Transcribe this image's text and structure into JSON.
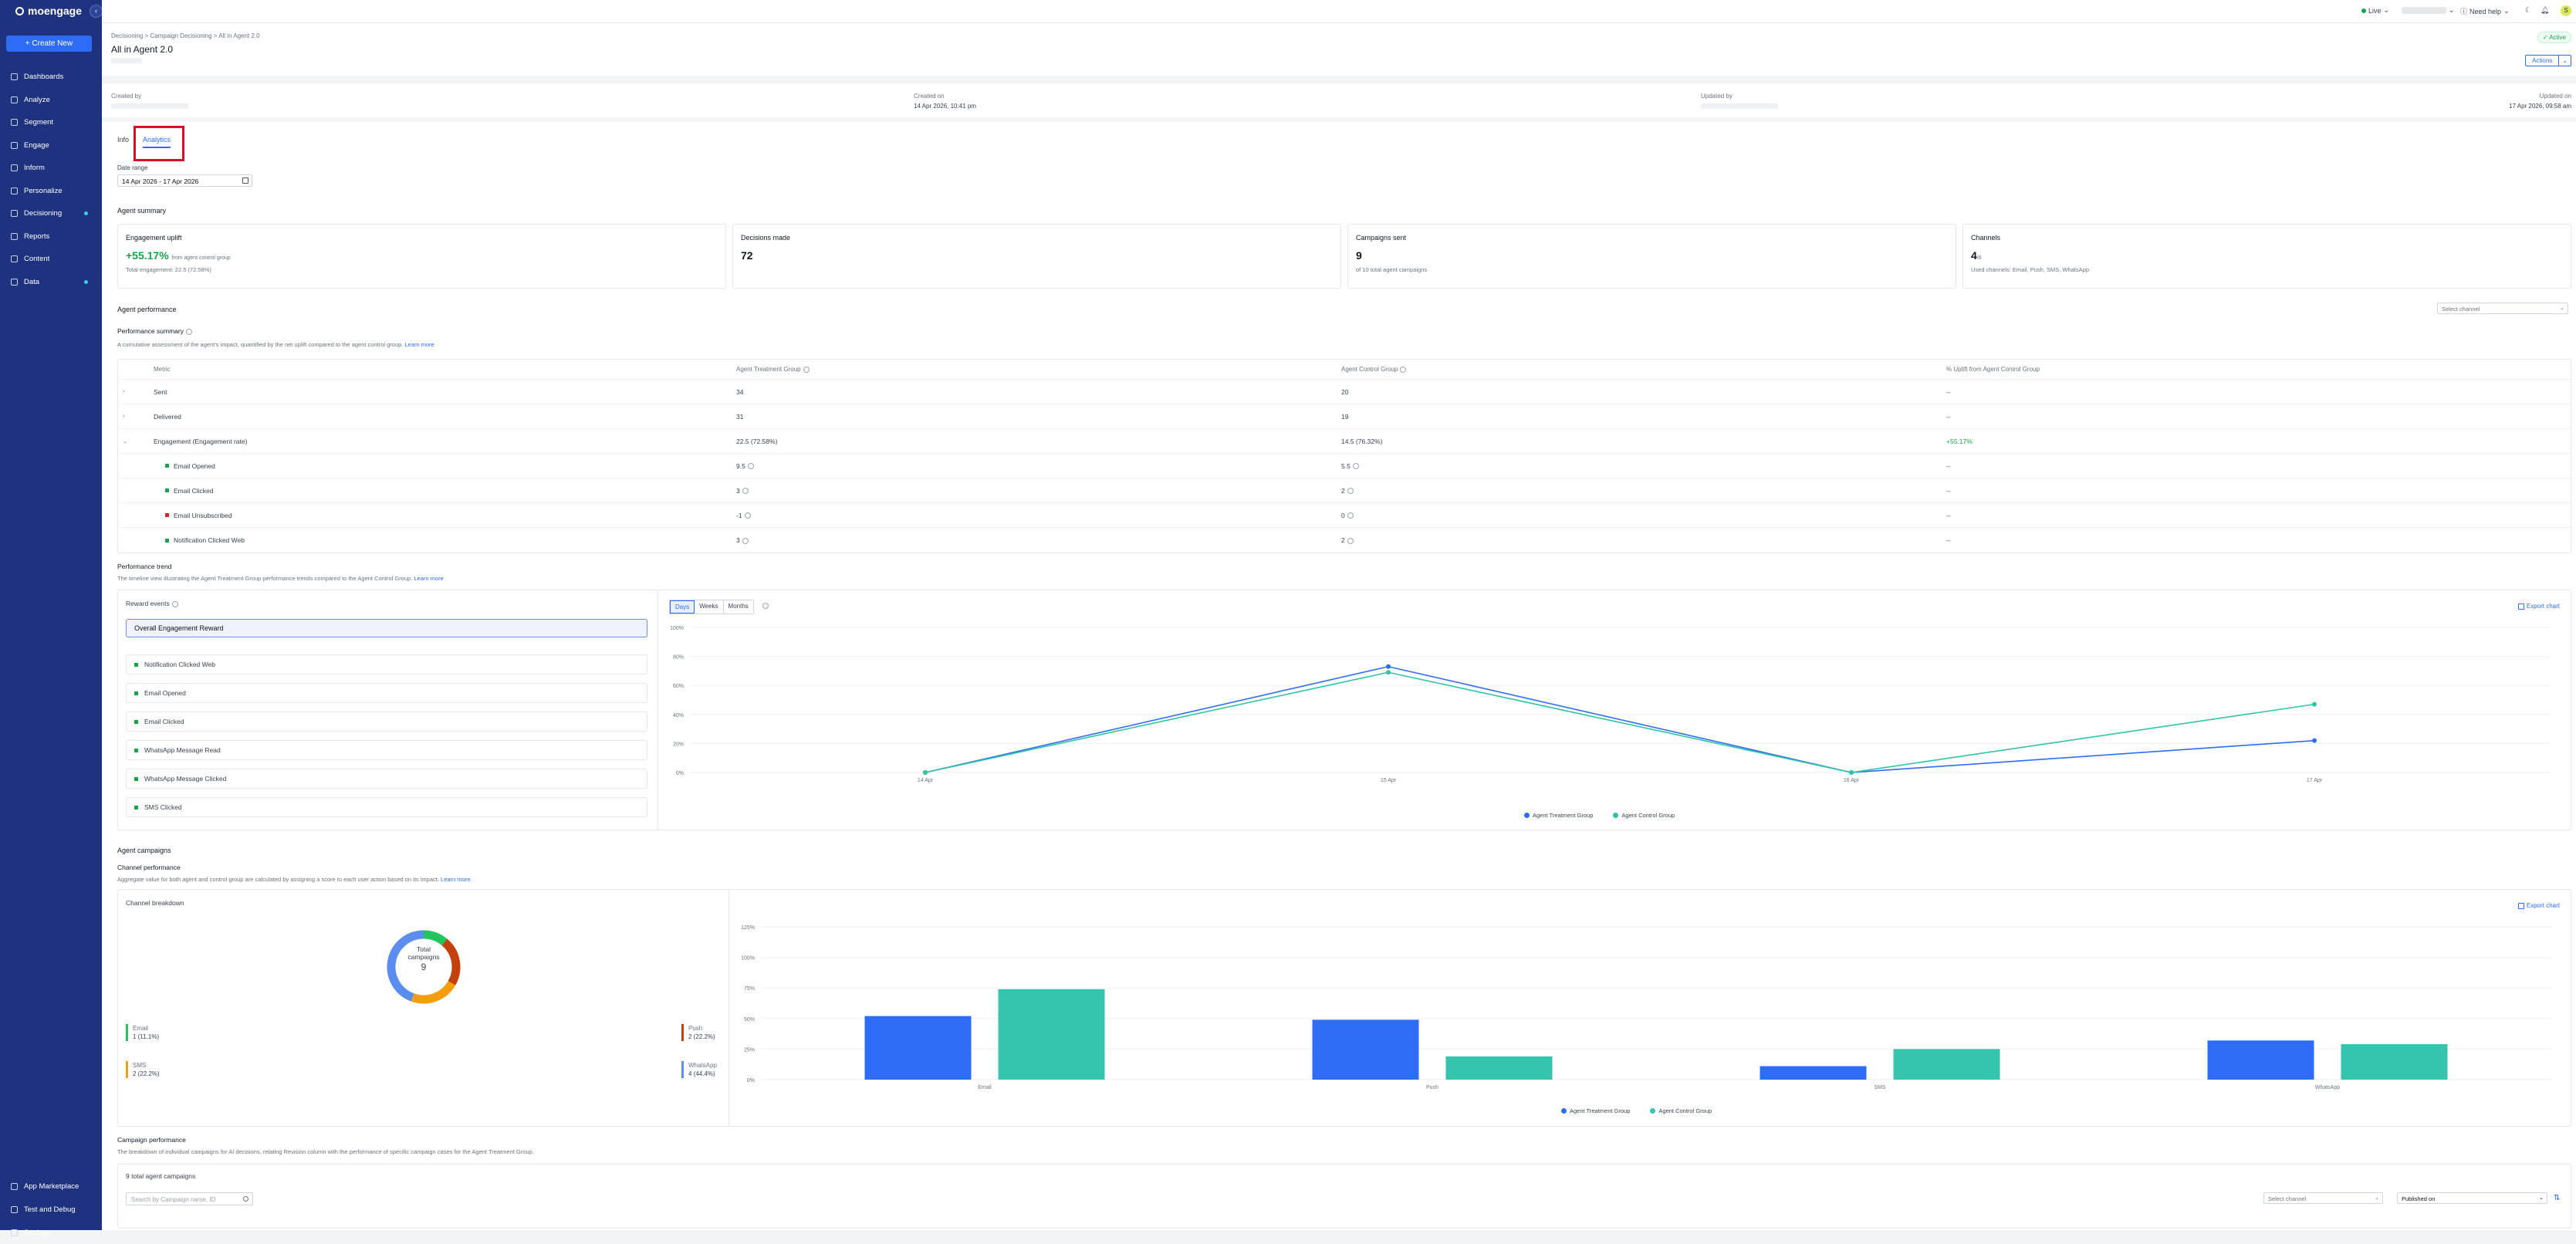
{
  "brand": {
    "name": "moengage"
  },
  "sidebar": {
    "create_label": "+ Create New",
    "items": [
      {
        "label": "Dashboards"
      },
      {
        "label": "Analyze"
      },
      {
        "label": "Segment"
      },
      {
        "label": "Engage"
      },
      {
        "label": "Inform"
      },
      {
        "label": "Personalize"
      },
      {
        "label": "Decisioning"
      },
      {
        "label": "Reports"
      },
      {
        "label": "Content"
      },
      {
        "label": "Data"
      }
    ],
    "bottom": [
      {
        "label": "App Marketplace"
      },
      {
        "label": "Test and Debug"
      },
      {
        "label": "Settings"
      }
    ]
  },
  "topbar": {
    "env": "Live",
    "help": "Need help",
    "user_initial": "S"
  },
  "header": {
    "breadcrumb": "Decisioning  >  Campaign Decisioning  >  All in Agent 2.0",
    "title": "All in Agent 2.0",
    "status": "Active",
    "actions_label": "Actions"
  },
  "meta": {
    "created_by_label": "Created by",
    "created_on_label": "Created on",
    "created_on": "14 Apr 2026, 10:41 pm",
    "updated_by_label": "Updated by",
    "updated_on_label": "Updated on",
    "updated_on": "17 Apr 2026, 09:58 am"
  },
  "tabs": [
    {
      "label": "Info"
    },
    {
      "label": "Analytics"
    }
  ],
  "date_range": {
    "label": "Date range",
    "value": "14 Apr 2026 - 17 Apr 2026"
  },
  "agent_summary": {
    "title": "Agent summary",
    "cards": [
      {
        "title": "Engagement uplift",
        "value": "+55.17%",
        "value_note": "from agent control group",
        "sub": "Total engagement: 22.5 (72.58%)"
      },
      {
        "title": "Decisions made",
        "value": "72",
        "value_note": "",
        "sub": ""
      },
      {
        "title": "Campaigns sent",
        "value": "9",
        "value_note": "",
        "sub": "of 10 total agent campaigns"
      },
      {
        "title": "Channels",
        "value": "4",
        "value_note": "/6",
        "sub": "Used channels: Email, Push, SMS, WhatsApp"
      }
    ]
  },
  "agent_performance": {
    "title": "Agent performance",
    "select_channel": "Select channel",
    "summary_title": "Performance summary",
    "summary_desc": "A cumulative assessment of the agent's impact, quantified by the net uplift compared to the agent control group.",
    "learn_more": "Learn more",
    "table": {
      "headers": [
        "Metric",
        "Agent Treatment Group",
        "Agent Control Group",
        "% Uplift from Agent Control Group"
      ],
      "rows": [
        {
          "expand": "›",
          "metric": "Sent",
          "treatment": "34",
          "control": "20",
          "uplift": "--"
        },
        {
          "expand": "›",
          "metric": "Delivered",
          "treatment": "31",
          "control": "19",
          "uplift": "--"
        },
        {
          "expand": "⌄",
          "metric": "Engagement (Engagement rate)",
          "treatment": "22.5 (72.58%)",
          "control": "14.5 (76.32%)",
          "uplift": "+55.17%"
        },
        {
          "expand": "",
          "metric": "Email Opened",
          "treatment": "9.5",
          "control": "5.5",
          "uplift": "--"
        },
        {
          "expand": "",
          "metric": "Email Clicked",
          "treatment": "3",
          "control": "2",
          "uplift": "--"
        },
        {
          "expand": "",
          "metric": "Email Unsubscribed",
          "treatment": "-1",
          "control": "0",
          "uplift": "--"
        },
        {
          "expand": "",
          "metric": "Notification Clicked Web",
          "treatment": "3",
          "control": "2",
          "uplift": "--"
        }
      ]
    }
  },
  "performance_trend": {
    "title": "Performance trend",
    "desc": "The timeline view illustrating the Agent Treatment Group performance trends compared to the Agent Control Group.",
    "learn_more": "Learn more",
    "reward_title": "Reward events",
    "selected_reward": "Overall Engagement Reward",
    "rewards": [
      "Notification Clicked Web",
      "Email Opened",
      "Email Clicked",
      "WhatsApp Message Read",
      "WhatsApp Message Clicked",
      "SMS Clicked"
    ],
    "granularity": [
      "Days",
      "Weeks",
      "Months"
    ],
    "export": "Export chart"
  },
  "agent_campaigns": {
    "title": "Agent campaigns",
    "channel_perf_title": "Channel performance",
    "channel_perf_desc": "Aggregate value for both agent and control group are calculated by assigning a score to each user action based on its impact.",
    "learn_more": "Learn more",
    "breakdown_title": "Channel breakdown",
    "donut_label": "Total campaigns",
    "donut_value": "9",
    "donut_legend": [
      {
        "name": "Email",
        "value": "1 (11.1%)",
        "color": "#22c55e"
      },
      {
        "name": "Push",
        "value": "2 (22.2%)",
        "color": "#c2410c"
      },
      {
        "name": "SMS",
        "value": "2 (22.2%)",
        "color": "#f59e0b"
      },
      {
        "name": "WhatsApp",
        "value": "4 (44.4%)",
        "color": "#5b8def"
      }
    ],
    "export": "Export chart"
  },
  "campaign_performance": {
    "title": "Campaign performance",
    "desc": "The breakdown of individual campaigns for AI decisions, relating Revision column with the performance of specific campaign cases for the Agent Treatment Group.",
    "total": "9 total agent campaigns",
    "search_placeholder": "Search by Campaign name, ID",
    "select_channel": "Select channel",
    "sort": "Published on"
  },
  "chart_data": [
    {
      "type": "line",
      "x": [
        "14 Apr",
        "15 Apr",
        "16 Apr",
        "17 Apr"
      ],
      "series": [
        {
          "name": "Agent Treatment Group",
          "values": [
            0,
            73,
            0,
            22
          ],
          "color": "#2f6cf6"
        },
        {
          "name": "Agent Control Group",
          "values": [
            0,
            69,
            0,
            47
          ],
          "color": "#2ec4a5"
        }
      ],
      "yticks": [
        "0%",
        "20%",
        "40%",
        "60%",
        "80%",
        "100%"
      ],
      "ylim": [
        0,
        100
      ]
    },
    {
      "type": "bar",
      "categories": [
        "Email",
        "Push",
        "SMS",
        "WhatsApp"
      ],
      "series": [
        {
          "name": "Agent Treatment Group",
          "values": [
            52,
            49,
            11,
            32
          ],
          "color": "#2f6cf6"
        },
        {
          "name": "Agent Control Group",
          "values": [
            74,
            19,
            25,
            29
          ],
          "color": "#35c4ad"
        }
      ],
      "yticks": [
        "0%",
        "25%",
        "50%",
        "75%",
        "100%",
        "125%"
      ],
      "ylim": [
        0,
        125
      ]
    }
  ]
}
